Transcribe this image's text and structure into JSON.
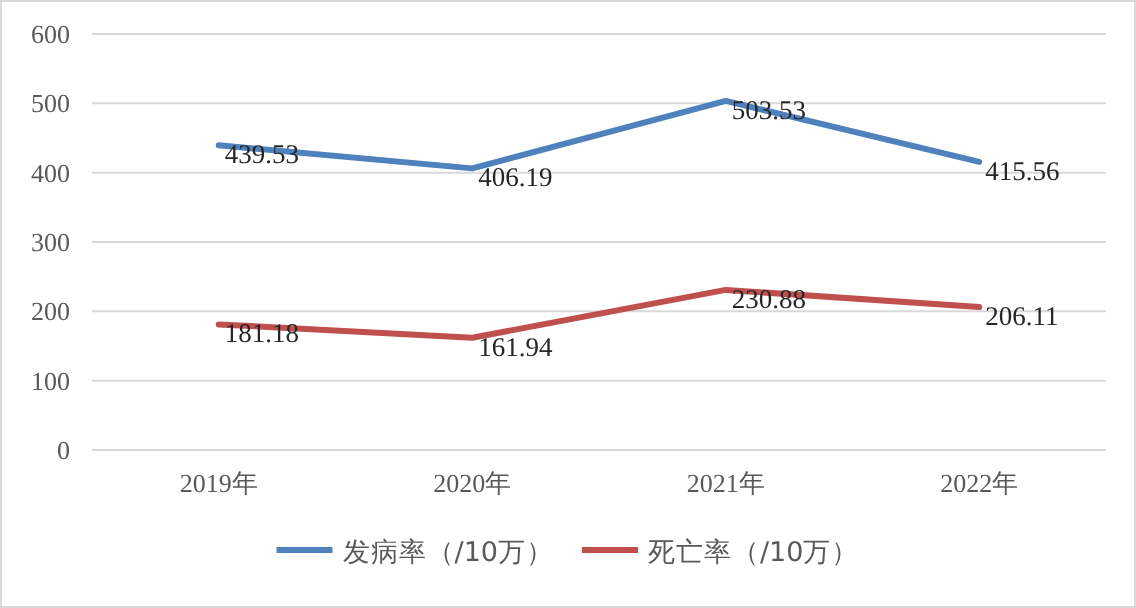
{
  "chart_data": {
    "type": "line",
    "categories": [
      "2019年",
      "2020年",
      "2021年",
      "2022年"
    ],
    "series": [
      {
        "name": "发病率（/10万）",
        "color": "#4f81bd",
        "values": [
          439.53,
          406.19,
          503.53,
          415.56
        ]
      },
      {
        "name": "死亡率（/10万）",
        "color": "#c0504d",
        "values": [
          181.18,
          161.94,
          230.88,
          206.11
        ]
      }
    ],
    "ylim": [
      0,
      600
    ],
    "yticks": [
      0,
      100,
      200,
      300,
      400,
      500,
      600
    ],
    "grid": "y",
    "legend": "bottom",
    "data_labels": true
  }
}
